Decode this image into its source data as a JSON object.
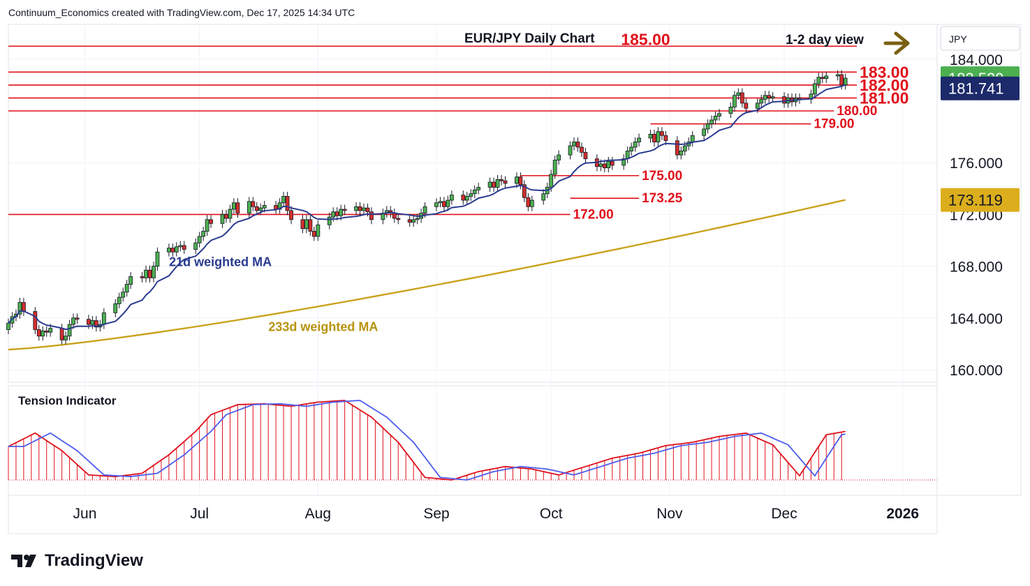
{
  "header": {
    "credit": "Continuum_Economics created with TradingView.com, Dec 17, 2025 14:34 UTC"
  },
  "branding": {
    "name": "TradingView",
    "logo_icon": "tradingview-logo-icon"
  },
  "chart_data": {
    "type": "candlestick",
    "title": "EUR/JPY Daily Chart",
    "view_label": "1-2 day view",
    "view_icon": "arrow-right-icon",
    "currency": "JPY",
    "y_ticks": [
      "184.000",
      "176.000",
      "172.000",
      "168.000",
      "164.000",
      "160.000"
    ],
    "ylim": [
      159.0,
      186.0
    ],
    "x_ticks": [
      {
        "label": "Jun",
        "date": "2025-06-01"
      },
      {
        "label": "Jul",
        "date": "2025-07-01"
      },
      {
        "label": "Aug",
        "date": "2025-08-01"
      },
      {
        "label": "Sep",
        "date": "2025-09-01"
      },
      {
        "label": "Oct",
        "date": "2025-10-01"
      },
      {
        "label": "Nov",
        "date": "2025-11-01"
      },
      {
        "label": "Dec",
        "date": "2025-12-01"
      },
      {
        "label": "2026",
        "date": "2026-01-01"
      }
    ],
    "x_range": [
      "2025-05-12",
      "2026-01-10"
    ],
    "price_badges": [
      {
        "label": "182.529",
        "value": 182.53,
        "color": "#4caf50"
      },
      {
        "label": "181.741",
        "value": 181.74,
        "color": "#1c2a6b"
      },
      {
        "label": "173.119",
        "value": 173.12,
        "color": "#dcae1d"
      }
    ],
    "levels": [
      {
        "value": 185.0,
        "label": "185.00",
        "from": "2025-05-12",
        "to": "2025-12-20",
        "label_date": "2025-11-02",
        "size": "large"
      },
      {
        "value": 183.0,
        "label": "183.00",
        "from": "2025-05-12",
        "to": "2025-12-20",
        "label_date": "2025-12-20",
        "size": "large"
      },
      {
        "value": 182.0,
        "label": "182.00",
        "from": "2025-05-12",
        "to": "2025-12-20",
        "label_date": "2025-12-20",
        "size": "large"
      },
      {
        "value": 181.0,
        "label": "181.00",
        "from": "2025-05-12",
        "to": "2025-12-20",
        "label_date": "2025-12-20",
        "size": "large"
      },
      {
        "value": 180.0,
        "label": "180.00",
        "from": "2025-05-12",
        "to": "2025-12-14",
        "label_date": "2025-12-14",
        "size": "small"
      },
      {
        "value": 179.0,
        "label": "179.00",
        "from": "2025-10-27",
        "to": "2025-12-08",
        "label_date": "2025-12-08",
        "size": "small"
      },
      {
        "value": 175.0,
        "label": "175.00",
        "from": "2025-09-23",
        "to": "2025-10-24",
        "label_date": "2025-10-24",
        "size": "small"
      },
      {
        "value": 173.25,
        "label": "173.25",
        "from": "2025-10-06",
        "to": "2025-10-24",
        "label_date": "2025-10-24",
        "size": "small"
      },
      {
        "value": 172.0,
        "label": "172.00",
        "from": "2025-05-12",
        "to": "2025-10-06",
        "label_date": "2025-10-06",
        "size": "small"
      }
    ],
    "annotations": [
      {
        "text": "21d weighted MA",
        "date": "2025-07-04",
        "value": 168.0,
        "color": "#2a3b8f"
      },
      {
        "text": "233d weighted MA",
        "date": "2025-07-30",
        "value": 163.0,
        "color": "#b8930f"
      }
    ],
    "closes": [
      [
        "2025-05-12",
        163.6
      ],
      [
        "2025-05-13",
        164.1
      ],
      [
        "2025-05-14",
        164.3
      ],
      [
        "2025-05-15",
        165.2
      ],
      [
        "2025-05-16",
        164.5
      ],
      [
        "2025-05-19",
        163.1
      ],
      [
        "2025-05-20",
        162.6
      ],
      [
        "2025-05-21",
        163.0
      ],
      [
        "2025-05-22",
        162.9
      ],
      [
        "2025-05-23",
        163.2
      ],
      [
        "2025-05-26",
        162.3
      ],
      [
        "2025-05-27",
        162.6
      ],
      [
        "2025-05-28",
        163.5
      ],
      [
        "2025-05-29",
        164.0
      ],
      [
        "2025-05-30",
        163.9
      ],
      [
        "2025-06-02",
        163.5
      ],
      [
        "2025-06-03",
        163.8
      ],
      [
        "2025-06-04",
        163.3
      ],
      [
        "2025-06-05",
        163.5
      ],
      [
        "2025-06-06",
        164.4
      ],
      [
        "2025-06-09",
        165.1
      ],
      [
        "2025-06-10",
        165.6
      ],
      [
        "2025-06-11",
        166.0
      ],
      [
        "2025-06-12",
        166.6
      ],
      [
        "2025-06-13",
        167.2
      ],
      [
        "2025-06-16",
        167.1
      ],
      [
        "2025-06-17",
        167.7
      ],
      [
        "2025-06-18",
        167.1
      ],
      [
        "2025-06-19",
        168.0
      ],
      [
        "2025-06-20",
        169.1
      ],
      [
        "2025-06-23",
        169.4
      ],
      [
        "2025-06-24",
        169.1
      ],
      [
        "2025-06-25",
        169.5
      ],
      [
        "2025-06-26",
        169.6
      ],
      [
        "2025-06-27",
        169.3
      ],
      [
        "2025-06-30",
        169.8
      ],
      [
        "2025-07-01",
        170.3
      ],
      [
        "2025-07-02",
        170.7
      ],
      [
        "2025-07-03",
        171.6
      ],
      [
        "2025-07-04",
        171.3
      ],
      [
        "2025-07-07",
        172.0
      ],
      [
        "2025-07-08",
        171.7
      ],
      [
        "2025-07-09",
        172.4
      ],
      [
        "2025-07-10",
        172.9
      ],
      [
        "2025-07-11",
        172.1
      ],
      [
        "2025-07-14",
        173.0
      ],
      [
        "2025-07-15",
        172.6
      ],
      [
        "2025-07-16",
        172.3
      ],
      [
        "2025-07-17",
        172.5
      ],
      [
        "2025-07-18",
        172.7
      ],
      [
        "2025-07-21",
        172.4
      ],
      [
        "2025-07-22",
        172.9
      ],
      [
        "2025-07-23",
        173.4
      ],
      [
        "2025-07-24",
        172.3
      ],
      [
        "2025-07-25",
        171.6
      ],
      [
        "2025-07-28",
        170.9
      ],
      [
        "2025-07-29",
        171.6
      ],
      [
        "2025-07-30",
        170.7
      ],
      [
        "2025-07-31",
        170.3
      ],
      [
        "2025-08-01",
        171.2
      ],
      [
        "2025-08-04",
        171.8
      ],
      [
        "2025-08-05",
        172.2
      ],
      [
        "2025-08-06",
        171.9
      ],
      [
        "2025-08-07",
        172.4
      ],
      [
        "2025-08-08",
        172.3
      ],
      [
        "2025-08-11",
        172.6
      ],
      [
        "2025-08-12",
        172.3
      ],
      [
        "2025-08-13",
        172.5
      ],
      [
        "2025-08-14",
        172.2
      ],
      [
        "2025-08-15",
        171.6
      ],
      [
        "2025-08-18",
        172.1
      ],
      [
        "2025-08-19",
        172.3
      ],
      [
        "2025-08-20",
        172.1
      ],
      [
        "2025-08-21",
        171.7
      ],
      [
        "2025-08-22",
        171.6
      ],
      [
        "2025-08-25",
        171.4
      ],
      [
        "2025-08-26",
        171.6
      ],
      [
        "2025-08-27",
        171.7
      ],
      [
        "2025-08-28",
        172.1
      ],
      [
        "2025-08-29",
        172.6
      ],
      [
        "2025-09-01",
        172.9
      ],
      [
        "2025-09-02",
        173.0
      ],
      [
        "2025-09-03",
        172.6
      ],
      [
        "2025-09-04",
        173.1
      ],
      [
        "2025-09-05",
        173.5
      ],
      [
        "2025-09-08",
        173.1
      ],
      [
        "2025-09-09",
        173.4
      ],
      [
        "2025-09-10",
        173.6
      ],
      [
        "2025-09-11",
        173.9
      ],
      [
        "2025-09-12",
        174.1
      ],
      [
        "2025-09-15",
        174.5
      ],
      [
        "2025-09-16",
        174.1
      ],
      [
        "2025-09-17",
        174.7
      ],
      [
        "2025-09-18",
        174.6
      ],
      [
        "2025-09-19",
        174.4
      ],
      [
        "2025-09-22",
        174.9
      ],
      [
        "2025-09-23",
        174.3
      ],
      [
        "2025-09-24",
        173.3
      ],
      [
        "2025-09-25",
        172.6
      ],
      [
        "2025-09-26",
        173.1
      ],
      [
        "2025-09-29",
        173.6
      ],
      [
        "2025-09-30",
        174.1
      ],
      [
        "2025-10-01",
        175.1
      ],
      [
        "2025-10-02",
        176.2
      ],
      [
        "2025-10-03",
        176.6
      ],
      [
        "2025-10-06",
        177.3
      ],
      [
        "2025-10-07",
        177.6
      ],
      [
        "2025-10-08",
        177.2
      ],
      [
        "2025-10-09",
        176.8
      ],
      [
        "2025-10-10",
        176.3
      ],
      [
        "2025-10-13",
        175.7
      ],
      [
        "2025-10-14",
        175.9
      ],
      [
        "2025-10-15",
        175.6
      ],
      [
        "2025-10-16",
        176.1
      ],
      [
        "2025-10-17",
        175.8
      ],
      [
        "2025-10-20",
        176.3
      ],
      [
        "2025-10-21",
        176.9
      ],
      [
        "2025-10-22",
        177.2
      ],
      [
        "2025-10-23",
        177.6
      ],
      [
        "2025-10-24",
        177.9
      ],
      [
        "2025-10-27",
        178.2
      ],
      [
        "2025-10-28",
        177.6
      ],
      [
        "2025-10-29",
        178.4
      ],
      [
        "2025-10-30",
        178.1
      ],
      [
        "2025-10-31",
        177.7
      ],
      [
        "2025-11-03",
        176.6
      ],
      [
        "2025-11-04",
        176.9
      ],
      [
        "2025-11-05",
        177.3
      ],
      [
        "2025-11-06",
        177.6
      ],
      [
        "2025-11-07",
        178.1
      ],
      [
        "2025-11-10",
        178.6
      ],
      [
        "2025-11-11",
        179.0
      ],
      [
        "2025-11-12",
        179.3
      ],
      [
        "2025-11-13",
        179.6
      ],
      [
        "2025-11-14",
        179.8
      ],
      [
        "2025-11-17",
        180.3
      ],
      [
        "2025-11-18",
        181.2
      ],
      [
        "2025-11-19",
        181.4
      ],
      [
        "2025-11-20",
        180.6
      ],
      [
        "2025-11-21",
        180.2
      ],
      [
        "2025-11-24",
        180.6
      ],
      [
        "2025-11-25",
        180.9
      ],
      [
        "2025-11-26",
        181.2
      ],
      [
        "2025-11-27",
        181.0
      ],
      [
        "2025-11-28",
        181.1
      ],
      [
        "2025-12-01",
        180.6
      ],
      [
        "2025-12-02",
        181.0
      ],
      [
        "2025-12-03",
        180.7
      ],
      [
        "2025-12-04",
        181.0
      ],
      [
        "2025-12-05",
        180.9
      ],
      [
        "2025-12-08",
        181.3
      ],
      [
        "2025-12-09",
        182.1
      ],
      [
        "2025-12-10",
        182.6
      ],
      [
        "2025-12-11",
        182.5
      ],
      [
        "2025-12-12",
        182.7
      ],
      [
        "2025-12-15",
        182.8
      ],
      [
        "2025-12-16",
        182.0
      ],
      [
        "2025-12-17",
        182.53
      ]
    ],
    "tension_indicator": {
      "title": "Tension Indicator",
      "histogram": [
        [
          "2025-05-12",
          0.4
        ],
        [
          "2025-05-19",
          0.56
        ],
        [
          "2025-05-26",
          0.35
        ],
        [
          "2025-06-02",
          0.06
        ],
        [
          "2025-06-09",
          0.04
        ],
        [
          "2025-06-16",
          0.08
        ],
        [
          "2025-06-23",
          0.3
        ],
        [
          "2025-06-30",
          0.58
        ],
        [
          "2025-07-04",
          0.78
        ],
        [
          "2025-07-11",
          0.9
        ],
        [
          "2025-07-18",
          0.91
        ],
        [
          "2025-07-25",
          0.88
        ],
        [
          "2025-08-01",
          0.93
        ],
        [
          "2025-08-08",
          0.95
        ],
        [
          "2025-08-15",
          0.75
        ],
        [
          "2025-08-22",
          0.45
        ],
        [
          "2025-08-29",
          0.03
        ],
        [
          "2025-09-05",
          0.0
        ],
        [
          "2025-09-12",
          0.1
        ],
        [
          "2025-09-19",
          0.16
        ],
        [
          "2025-09-26",
          0.13
        ],
        [
          "2025-10-03",
          0.06
        ],
        [
          "2025-10-10",
          0.16
        ],
        [
          "2025-10-17",
          0.26
        ],
        [
          "2025-10-24",
          0.32
        ],
        [
          "2025-10-31",
          0.41
        ],
        [
          "2025-11-07",
          0.45
        ],
        [
          "2025-11-14",
          0.52
        ],
        [
          "2025-11-21",
          0.56
        ],
        [
          "2025-11-28",
          0.42
        ],
        [
          "2025-12-05",
          0.05
        ],
        [
          "2025-12-12",
          0.54
        ],
        [
          "2025-12-17",
          0.58
        ]
      ]
    }
  }
}
